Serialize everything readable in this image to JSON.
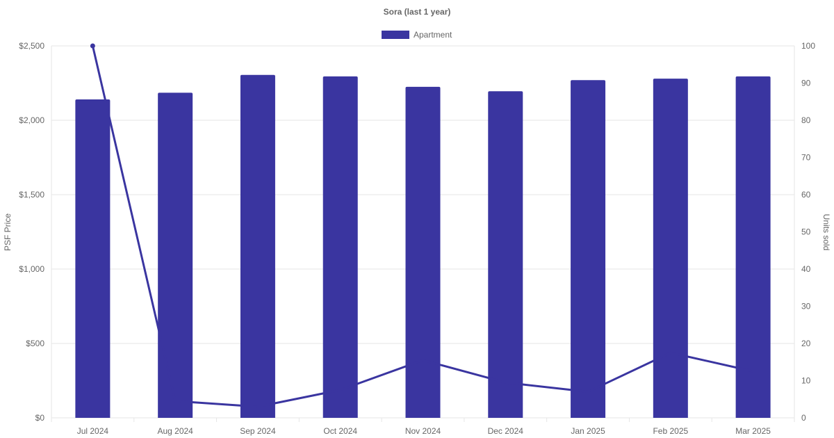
{
  "chart_data": {
    "type": "bar",
    "title": "Sora (last 1 year)",
    "legend": {
      "position": "top",
      "entries": [
        "Apartment"
      ]
    },
    "categories": [
      "Jul 2024",
      "Aug 2024",
      "Sep 2024",
      "Oct 2024",
      "Nov 2024",
      "Dec 2024",
      "Jan 2025",
      "Feb 2025",
      "Mar 2025"
    ],
    "series": [
      {
        "name": "Apartment",
        "type": "bar",
        "axis": "left",
        "values": [
          2140,
          2185,
          2305,
          2295,
          2225,
          2195,
          2270,
          2280,
          2295
        ]
      },
      {
        "type": "line",
        "axis": "right",
        "values": [
          100,
          4.5,
          3,
          7.5,
          15.5,
          9.5,
          7,
          17.5,
          12.5
        ]
      }
    ],
    "y_left": {
      "label": "PSF Price",
      "min": 0,
      "max": 2500,
      "ticks": [
        0,
        500,
        1000,
        1500,
        2000,
        2500
      ],
      "tick_labels": [
        "$0",
        "$500",
        "$1,000",
        "$1,500",
        "$2,000",
        "$2,500"
      ]
    },
    "y_right": {
      "label": "Units sold",
      "min": 0,
      "max": 100,
      "ticks": [
        0,
        10,
        20,
        30,
        40,
        50,
        60,
        70,
        80,
        90,
        100
      ],
      "tick_labels": [
        "0",
        "10",
        "20",
        "30",
        "40",
        "50",
        "60",
        "70",
        "80",
        "90",
        "100"
      ]
    },
    "grid": true,
    "colors": {
      "bar": "#3a35a0",
      "line": "#3a35a0",
      "grid": "#e6e6e6",
      "text": "#666666"
    }
  }
}
